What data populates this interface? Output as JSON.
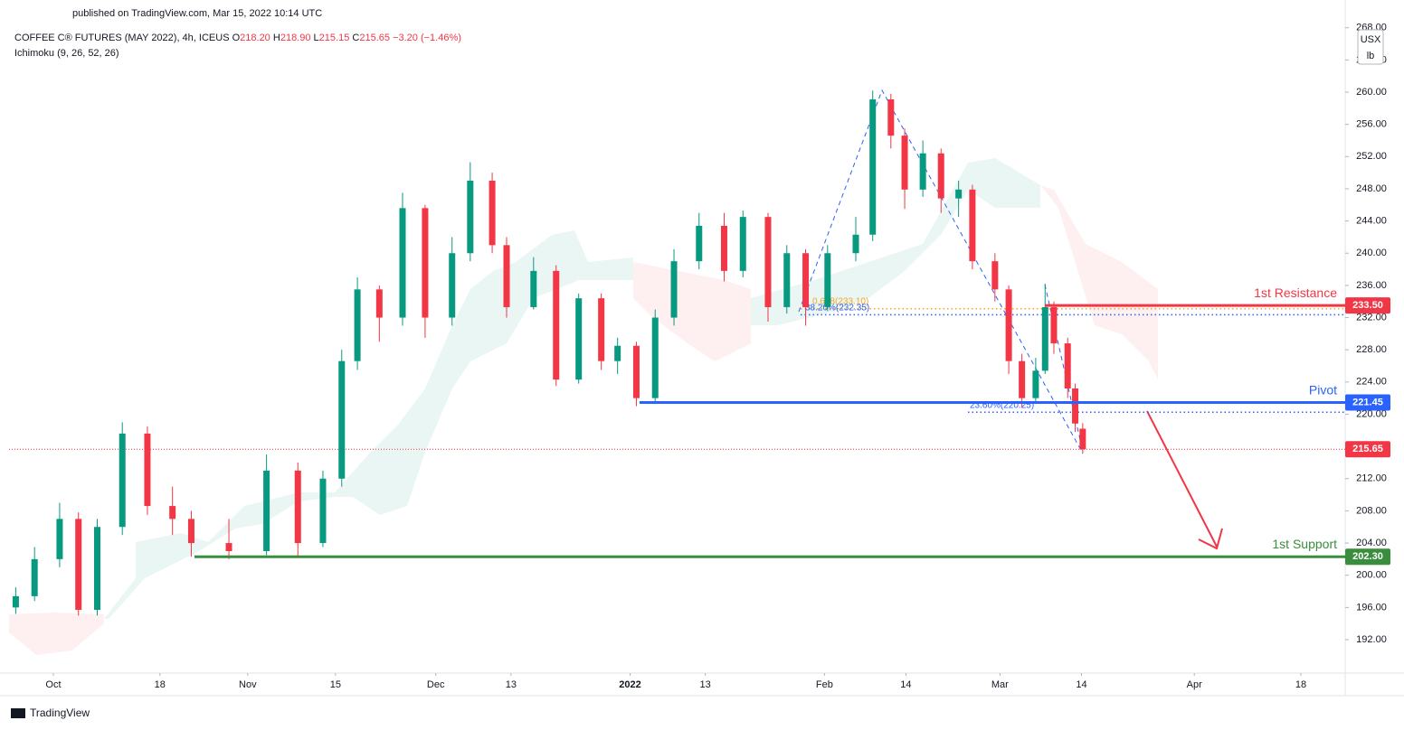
{
  "header": {
    "published": "published on TradingView.com, Mar 15, 2022 10:14 UTC"
  },
  "chart_data": {
    "type": "candlestick",
    "title": "COFFEE C® FUTURES (MAY 2022), 4h, ICEUS",
    "ohlc_legend": [
      {
        "label": "O",
        "value": "218.20"
      },
      {
        "label": "H",
        "value": "218.90"
      },
      {
        "label": "L",
        "value": "215.15"
      },
      {
        "label": "C",
        "value": "215.65"
      }
    ],
    "change": "−3.20 (−1.46%)",
    "subtitle": "Ichimoku (9, 26, 52, 26)",
    "currency": "USX",
    "unit": "lb",
    "up_color": "#089981",
    "down_color": "#f23645",
    "x": [
      -6,
      -3,
      1,
      4,
      7,
      11,
      15,
      19,
      22,
      28,
      34,
      39,
      43,
      46,
      48.5,
      52,
      55.7,
      59.3,
      63.6,
      66.5,
      70,
      72.3,
      76.6,
      80.2,
      83.8,
      87.4,
      90,
      93,
      96,
      99,
      103,
      107,
      110,
      114,
      117,
      120,
      123.5,
      128,
      130.7,
      133.6,
      135.8,
      138.7,
      141.6,
      144.4,
      146.6,
      150.2,
      152.4,
      154.5,
      156.7,
      158.2,
      159.6,
      161.8,
      163,
      164.2
    ],
    "open": [
      196,
      197.4,
      202,
      207,
      195.7,
      206,
      217.6,
      208.6,
      207,
      204,
      203,
      213,
      204,
      212,
      226.6,
      235.5,
      232,
      245.6,
      232,
      240,
      249,
      241,
      233.3,
      237.8,
      224.3,
      234.4,
      226.6,
      228.5,
      222,
      232,
      239,
      243.4,
      237.8,
      244.5,
      233.3,
      240,
      233.3,
      240,
      242.3,
      259.1,
      254.6,
      247.9,
      252.4,
      246.8,
      247.9,
      239,
      235.5,
      226.6,
      222,
      225.4,
      233.3,
      228.8,
      223.2,
      218.2
    ],
    "high": [
      198.5,
      203.5,
      209,
      207.8,
      207,
      219,
      218.5,
      211,
      208,
      207,
      215,
      214,
      213,
      228,
      237,
      236,
      247.5,
      246,
      242,
      251.3,
      250,
      242,
      239.5,
      238.5,
      235,
      235,
      229.5,
      229,
      233,
      240.5,
      245,
      245,
      245.3,
      245,
      241,
      240.5,
      241,
      244.5,
      260.2,
      259.8,
      255.5,
      254,
      253,
      249,
      248.5,
      240,
      236,
      227.5,
      227,
      236.2,
      234,
      229.5,
      223.8,
      218.9
    ],
    "low": [
      195.2,
      196.8,
      201,
      195,
      195,
      205,
      207.5,
      205,
      202.3,
      202,
      202.5,
      202.3,
      203.5,
      211,
      225.5,
      229,
      231,
      229.5,
      231,
      239,
      240,
      232,
      233,
      223.5,
      223.8,
      225.5,
      225,
      221,
      221.5,
      231,
      238,
      236.5,
      237,
      231.5,
      232.5,
      231,
      232.8,
      239,
      241.5,
      253,
      245.5,
      247,
      245,
      244.5,
      238,
      234,
      225,
      220.8,
      221.3,
      225,
      227.5,
      222,
      217.8,
      215.15
    ],
    "close": [
      197.4,
      202,
      207,
      195.7,
      206,
      217.6,
      208.6,
      207,
      204,
      203,
      213,
      204,
      212,
      226.6,
      235.5,
      232,
      245.6,
      232,
      240,
      249,
      241,
      233.3,
      237.8,
      224.3,
      234.4,
      226.6,
      228.5,
      222,
      232,
      239,
      243.4,
      237.8,
      244.5,
      233.3,
      240,
      233.3,
      240,
      242.3,
      259.1,
      254.6,
      247.9,
      252.4,
      246.8,
      247.9,
      239,
      235.5,
      226.6,
      222,
      225.4,
      233.3,
      228.8,
      223.2,
      218.85,
      215.65
    ],
    "xlim": [
      -7.07,
      206.07
    ],
    "xticks": [
      {
        "value": 0,
        "label": "Oct"
      },
      {
        "value": 17,
        "label": "18"
      },
      {
        "value": 31,
        "label": "Nov"
      },
      {
        "value": 45,
        "label": "15"
      },
      {
        "value": 61,
        "label": "Dec"
      },
      {
        "value": 73,
        "label": "13"
      },
      {
        "value": 92,
        "label": "2022"
      },
      {
        "value": 104,
        "label": "13"
      },
      {
        "value": 123,
        "label": "Feb"
      },
      {
        "value": 136,
        "label": "14"
      },
      {
        "value": 151,
        "label": "Mar"
      },
      {
        "value": 164,
        "label": "14"
      },
      {
        "value": 182,
        "label": "Apr"
      },
      {
        "value": 199,
        "label": "18"
      }
    ],
    "ylim": [
      187.85,
      268.64
    ],
    "yticks": [
      {
        "value": 192,
        "label": "192.00"
      },
      {
        "value": 196,
        "label": "196.00"
      },
      {
        "value": 200,
        "label": "200.00"
      },
      {
        "value": 204,
        "label": "204.00"
      },
      {
        "value": 208,
        "label": "208.00"
      },
      {
        "value": 212,
        "label": "212.00"
      },
      {
        "value": 216,
        "label": "216.00"
      },
      {
        "value": 220,
        "label": "220.00"
      },
      {
        "value": 224,
        "label": "224.00"
      },
      {
        "value": 228,
        "label": "228.00"
      },
      {
        "value": 232,
        "label": "232.00"
      },
      {
        "value": 236,
        "label": "236.00"
      },
      {
        "value": 240,
        "label": "240.00"
      },
      {
        "value": 244,
        "label": "244.00"
      },
      {
        "value": 248,
        "label": "248.00"
      },
      {
        "value": 252,
        "label": "252.00"
      },
      {
        "value": 256,
        "label": "256.00"
      },
      {
        "value": 260,
        "label": "260.00"
      },
      {
        "value": 264,
        "label": "264.00"
      },
      {
        "value": 268,
        "label": "268.00"
      }
    ],
    "grid": false,
    "levels": [
      {
        "name": "1st Resistance",
        "value": 233.5,
        "label": "233.50",
        "color": "#f23645"
      },
      {
        "name": "Pivot",
        "value": 221.45,
        "label": "221.45",
        "color": "#2962ff"
      },
      {
        "name": "1st Support",
        "value": 202.3,
        "label": "202.30",
        "color": "#388e3c"
      }
    ],
    "fib_levels": [
      {
        "label": "0.618(233.10)",
        "value": 233.1,
        "color": "#f5a623"
      },
      {
        "label": "38.20%(232.35)",
        "value": 232.35,
        "color": "#2962ff"
      },
      {
        "label": "23.60%(220.25)",
        "value": 220.25,
        "color": "#2962ff"
      }
    ],
    "last_price": {
      "value": 215.65,
      "label": "215.65",
      "color": "#f23645"
    }
  },
  "footer": {
    "brand": "TradingView"
  }
}
